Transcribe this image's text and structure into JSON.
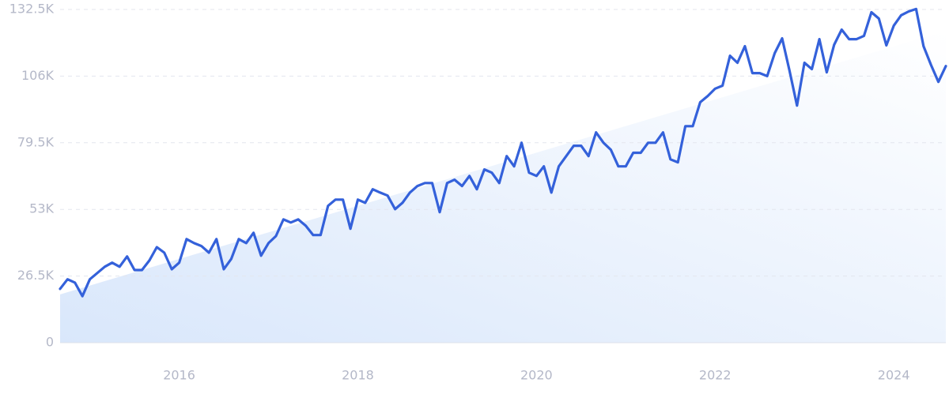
{
  "chart_data": {
    "type": "line",
    "color": "#3461da",
    "x": [
      2014.667,
      2014.75,
      2014.833,
      2014.917,
      2015,
      2015.083,
      2015.167,
      2015.25,
      2015.333,
      2015.417,
      2015.5,
      2015.583,
      2015.667,
      2015.75,
      2015.833,
      2015.917,
      2016,
      2016.083,
      2016.167,
      2016.25,
      2016.333,
      2016.417,
      2016.5,
      2016.583,
      2016.667,
      2016.75,
      2016.833,
      2016.917,
      2017,
      2017.083,
      2017.167,
      2017.25,
      2017.333,
      2017.417,
      2017.5,
      2017.583,
      2017.667,
      2017.75,
      2017.833,
      2017.917,
      2018,
      2018.083,
      2018.167,
      2018.25,
      2018.333,
      2018.417,
      2018.5,
      2018.583,
      2018.667,
      2018.75,
      2018.833,
      2018.917,
      2019,
      2019.083,
      2019.167,
      2019.25,
      2019.333,
      2019.417,
      2019.5,
      2019.583,
      2019.667,
      2019.75,
      2019.833,
      2019.917,
      2020,
      2020.083,
      2020.167,
      2020.25,
      2020.333,
      2020.417,
      2020.5,
      2020.583,
      2020.667,
      2020.75,
      2020.833,
      2020.917,
      2021,
      2021.083,
      2021.167,
      2021.25,
      2021.333,
      2021.417,
      2021.5,
      2021.583,
      2021.667,
      2021.75,
      2021.833,
      2021.917,
      2022,
      2022.083,
      2022.167,
      2022.25,
      2022.333,
      2022.417,
      2022.5,
      2022.583,
      2022.667,
      2022.75,
      2022.833,
      2022.917,
      2023,
      2023.083,
      2023.167,
      2023.25,
      2023.333,
      2023.417,
      2023.5,
      2023.583,
      2023.667,
      2023.75,
      2023.833,
      2023.917,
      2024,
      2024.083,
      2024.167,
      2024.25,
      2024.333,
      2024.417,
      2024.5,
      2024.583
    ],
    "values": [
      21400,
      25200,
      23900,
      18500,
      25200,
      27700,
      30200,
      31800,
      30200,
      34300,
      28900,
      28900,
      32700,
      38000,
      35800,
      29200,
      31800,
      41200,
      39600,
      38400,
      35800,
      41200,
      29200,
      33300,
      41200,
      39600,
      43700,
      34600,
      39600,
      42400,
      49000,
      47800,
      49000,
      46500,
      42800,
      42800,
      54400,
      56900,
      56900,
      45300,
      56900,
      55600,
      61000,
      59700,
      58500,
      53100,
      55600,
      59700,
      62300,
      63500,
      63500,
      51900,
      63500,
      64800,
      62300,
      66300,
      61000,
      68900,
      67600,
      63500,
      74200,
      70100,
      79500,
      67600,
      66300,
      70100,
      59700,
      70100,
      74200,
      78300,
      78300,
      74200,
      83600,
      79500,
      76700,
      70100,
      70100,
      75500,
      75500,
      79500,
      79500,
      83600,
      72900,
      71700,
      86100,
      86100,
      95600,
      98100,
      101000,
      102200,
      114100,
      111300,
      117900,
      107200,
      107200,
      106000,
      115100,
      121000,
      108200,
      94300,
      111300,
      108800,
      120700,
      107500,
      118500,
      124500,
      120700,
      120700,
      122000,
      131400,
      128900,
      118200,
      126100,
      130200,
      131700,
      132700,
      117900,
      110400,
      103700,
      110000
    ],
    "trend": [
      19200,
      124000
    ],
    "xlim": [
      2014.667,
      2024.583
    ],
    "xticks": [
      2016,
      2018,
      2020,
      2022,
      2024
    ],
    "ylim": [
      0,
      132500
    ],
    "yticks": [
      0,
      {
        "value": 26500,
        "label": "26.5K"
      },
      {
        "value": 53000,
        "label": "53K"
      },
      {
        "value": 79500,
        "label": "79.5K"
      },
      {
        "value": 106000,
        "label": "106K"
      },
      {
        "value": 132500,
        "label": "132.5K"
      }
    ],
    "grid": true
  }
}
